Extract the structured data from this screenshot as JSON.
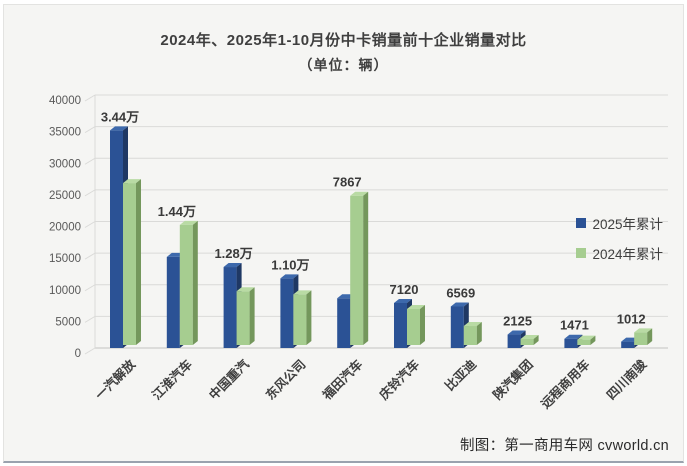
{
  "window": {
    "footer_credit": "制图：第一商用车网 cvworld.cn"
  },
  "chart_data": {
    "type": "bar",
    "title": "2024年、2025年1-10月份中卡销量前十企业销量对比",
    "subtitle": "（单位：辆）",
    "unit": "辆",
    "categories": [
      "一汽解放",
      "江淮汽车",
      "中国重汽",
      "东风公司",
      "福田汽车",
      "庆铃汽车",
      "比亚迪",
      "陕汽集团",
      "远程商用车",
      "四川南骏"
    ],
    "series": [
      {
        "name": "2025年累计",
        "values": [
          34400,
          14400,
          12800,
          11000,
          7867,
          7120,
          6569,
          2125,
          1471,
          1012
        ],
        "labels": [
          "3.44万",
          "1.44万",
          "1.28万",
          "1.10万",
          "7867",
          "7120",
          "6569",
          "2125",
          "1471",
          "1012"
        ],
        "color": "#2b5295",
        "side_color": "#1f3864",
        "top_color": "#3d69ac"
      },
      {
        "name": "2024年累计",
        "values": [
          25600,
          19000,
          8500,
          8000,
          23600,
          5700,
          3000,
          950,
          850,
          2000
        ],
        "values_estimated_from_pixels": true,
        "color": "#a6cd90",
        "side_color": "#74975c",
        "top_color": "#b9dba4"
      }
    ],
    "ylim": [
      0,
      40000
    ],
    "yticks": [
      0,
      5000,
      10000,
      15000,
      20000,
      25000,
      30000,
      35000,
      40000
    ],
    "grid": true,
    "legend_position": "right",
    "style_3d": true,
    "colors": {
      "background": "#f5f5f3",
      "gridline": "#dadad8",
      "axis_line": "#c2c2c0",
      "tick_label": "#595959",
      "value_label": "#3a3a3a",
      "category_label": "#3f3f3f",
      "title_text": "#3f3f3f"
    }
  }
}
